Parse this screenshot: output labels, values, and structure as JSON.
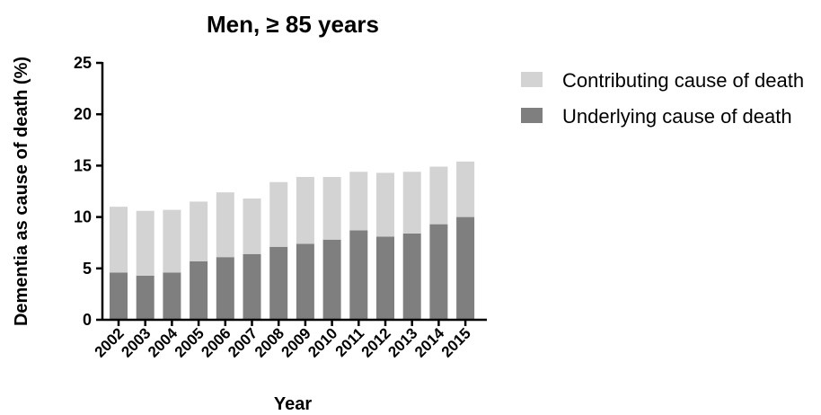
{
  "chart_data": {
    "type": "bar",
    "stacked": true,
    "title": "Men, ≥ 85 years",
    "xlabel": "Year",
    "ylabel": "Dementia as cause of death (%)",
    "ylim": [
      0,
      25
    ],
    "yticks": [
      "0",
      "5",
      "10",
      "15",
      "20",
      "25"
    ],
    "categories": [
      "2002",
      "2003",
      "2004",
      "2005",
      "2006",
      "2007",
      "2008",
      "2009",
      "2010",
      "2011",
      "2012",
      "2013",
      "2014",
      "2015"
    ],
    "series": [
      {
        "name": "Underlying cause of death",
        "color": "#7f7f7f",
        "values": [
          4.6,
          4.3,
          4.6,
          5.7,
          6.1,
          6.4,
          7.1,
          7.4,
          7.8,
          8.7,
          8.1,
          8.4,
          9.3,
          10.0
        ]
      },
      {
        "name": "Contributing cause of death",
        "color": "#d3d3d3",
        "values": [
          6.4,
          6.3,
          6.1,
          5.8,
          6.3,
          5.4,
          6.3,
          6.5,
          6.1,
          5.7,
          6.2,
          6.0,
          5.6,
          5.4
        ]
      }
    ],
    "legend": {
      "position": "right",
      "order": [
        "Contributing cause of death",
        "Underlying cause of death"
      ]
    },
    "grid": false
  }
}
